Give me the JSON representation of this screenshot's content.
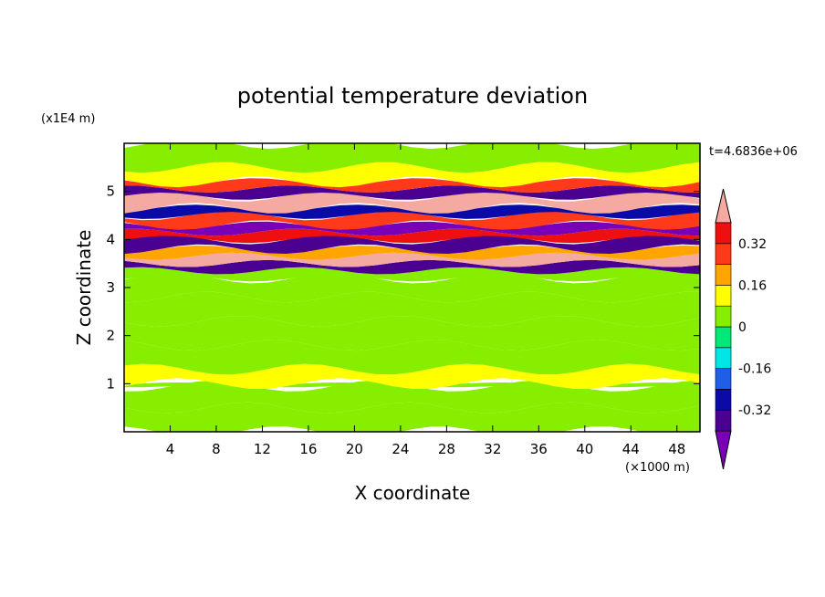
{
  "chart_data": {
    "type": "heatmap",
    "title": "potential temperature deviation",
    "xlabel": "X coordinate",
    "ylabel": "Z coordinate",
    "x_unit": "(×1000 m)",
    "y_unit": "(x1E4 m)",
    "time_label": "t=4.6836e+06",
    "xlim": [
      0,
      50
    ],
    "ylim": [
      0,
      6
    ],
    "x_ticks": [
      4,
      8,
      12,
      16,
      20,
      24,
      28,
      32,
      36,
      40,
      44,
      48
    ],
    "y_ticks": [
      1,
      2,
      3,
      4,
      5
    ],
    "colorbar": {
      "levels": [
        -0.4,
        -0.32,
        -0.24,
        -0.16,
        -0.08,
        0,
        0.08,
        0.16,
        0.24,
        0.32,
        0.4
      ],
      "labels": [
        "0.32",
        "0.16",
        "0",
        "-0.16",
        "-0.32"
      ],
      "label_values": [
        0.32,
        0.16,
        0,
        -0.16,
        -0.32
      ],
      "colors": [
        "#7a00b8",
        "#4a0090",
        "#0a0aa8",
        "#1f5fe8",
        "#00e6e6",
        "#00e878",
        "#88ee00",
        "#ffff00",
        "#ffa500",
        "#ff3a1a",
        "#ee1010",
        "#f4aaa0"
      ],
      "extend": "both"
    },
    "bands": [
      {
        "z": 0.0,
        "value": 0.03
      },
      {
        "z": 0.5,
        "value": 0.0
      },
      {
        "z": 0.95,
        "value": 0.05
      },
      {
        "z": 1.0,
        "value": 0.1
      },
      {
        "z": 1.3,
        "value": 0.0
      },
      {
        "z": 1.8,
        "value": 0.05
      },
      {
        "z": 2.3,
        "value": 0.0
      },
      {
        "z": 2.8,
        "value": 0.05
      },
      {
        "z": 3.2,
        "value": 0.0
      },
      {
        "z": 3.35,
        "value": -0.35
      },
      {
        "z": 3.5,
        "value": 0.4
      },
      {
        "z": 3.65,
        "value": 0.2
      },
      {
        "z": 3.8,
        "value": -0.4
      },
      {
        "z": 4.0,
        "value": 0.35
      },
      {
        "z": 4.15,
        "value": -0.45
      },
      {
        "z": 4.3,
        "value": 0.3
      },
      {
        "z": 4.5,
        "value": -0.3
      },
      {
        "z": 4.65,
        "value": 0.4
      },
      {
        "z": 4.9,
        "value": -0.4
      },
      {
        "z": 5.05,
        "value": 0.3
      },
      {
        "z": 5.2,
        "value": 0.1
      },
      {
        "z": 5.5,
        "value": 0.05
      },
      {
        "z": 6.0,
        "value": 0.05
      }
    ]
  }
}
